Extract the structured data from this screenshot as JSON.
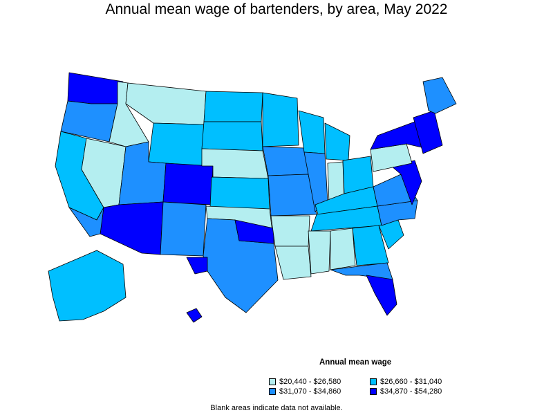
{
  "title": "Annual mean wage of bartenders, by area, May 2022",
  "legend": {
    "title": "Annual mean wage",
    "items": [
      {
        "label": "$20,440 - $26,580",
        "color": "#b4eef0"
      },
      {
        "label": "$26,660 - $31,040",
        "color": "#00bfff"
      },
      {
        "label": "$31,070 - $34,860",
        "color": "#1e90ff"
      },
      {
        "label": "$34,870 - $54,280",
        "color": "#0000ff"
      }
    ]
  },
  "note": "Blank areas indicate data not available.",
  "regions": [
    {
      "name": "Pacific Northwest coast",
      "bin": 3
    },
    {
      "name": "Oregon interior",
      "bin": 2
    },
    {
      "name": "Northern California",
      "bin": 1
    },
    {
      "name": "Nevada",
      "bin": 0
    },
    {
      "name": "Idaho",
      "bin": 0
    },
    {
      "name": "Montana",
      "bin": 0
    },
    {
      "name": "Wyoming",
      "bin": 1
    },
    {
      "name": "Utah",
      "bin": 2
    },
    {
      "name": "Colorado",
      "bin": 3
    },
    {
      "name": "Arizona",
      "bin": 3
    },
    {
      "name": "Southern California",
      "bin": 2
    },
    {
      "name": "New Mexico",
      "bin": 2
    },
    {
      "name": "North Dakota",
      "bin": 1
    },
    {
      "name": "South Dakota",
      "bin": 1
    },
    {
      "name": "Nebraska",
      "bin": 0
    },
    {
      "name": "Kansas",
      "bin": 1
    },
    {
      "name": "Oklahoma",
      "bin": 0
    },
    {
      "name": "Texas",
      "bin": 2
    },
    {
      "name": "North Texas",
      "bin": 3
    },
    {
      "name": "West Texas",
      "bin": 3
    },
    {
      "name": "Minnesota",
      "bin": 1
    },
    {
      "name": "Iowa",
      "bin": 2
    },
    {
      "name": "Missouri",
      "bin": 2
    },
    {
      "name": "Arkansas",
      "bin": 0
    },
    {
      "name": "Louisiana",
      "bin": 0
    },
    {
      "name": "Wisconsin",
      "bin": 1
    },
    {
      "name": "Illinois",
      "bin": 2
    },
    {
      "name": "Michigan",
      "bin": 1
    },
    {
      "name": "Indiana",
      "bin": 0
    },
    {
      "name": "Ohio",
      "bin": 1
    },
    {
      "name": "Kentucky",
      "bin": 1
    },
    {
      "name": "Tennessee",
      "bin": 1
    },
    {
      "name": "Mississippi",
      "bin": 0
    },
    {
      "name": "Alabama",
      "bin": 0
    },
    {
      "name": "Georgia",
      "bin": 1
    },
    {
      "name": "Florida",
      "bin": 2
    },
    {
      "name": "South Florida",
      "bin": 3
    },
    {
      "name": "South Carolina",
      "bin": 1
    },
    {
      "name": "North Carolina",
      "bin": 2
    },
    {
      "name": "Virginia",
      "bin": 2
    },
    {
      "name": "Mid-Atlantic",
      "bin": 3
    },
    {
      "name": "Pennsylvania",
      "bin": 0
    },
    {
      "name": "New York",
      "bin": 3
    },
    {
      "name": "New England",
      "bin": 3
    },
    {
      "name": "Maine",
      "bin": 2
    },
    {
      "name": "Alaska",
      "bin": 1
    },
    {
      "name": "Hawaii",
      "bin": 3
    }
  ]
}
